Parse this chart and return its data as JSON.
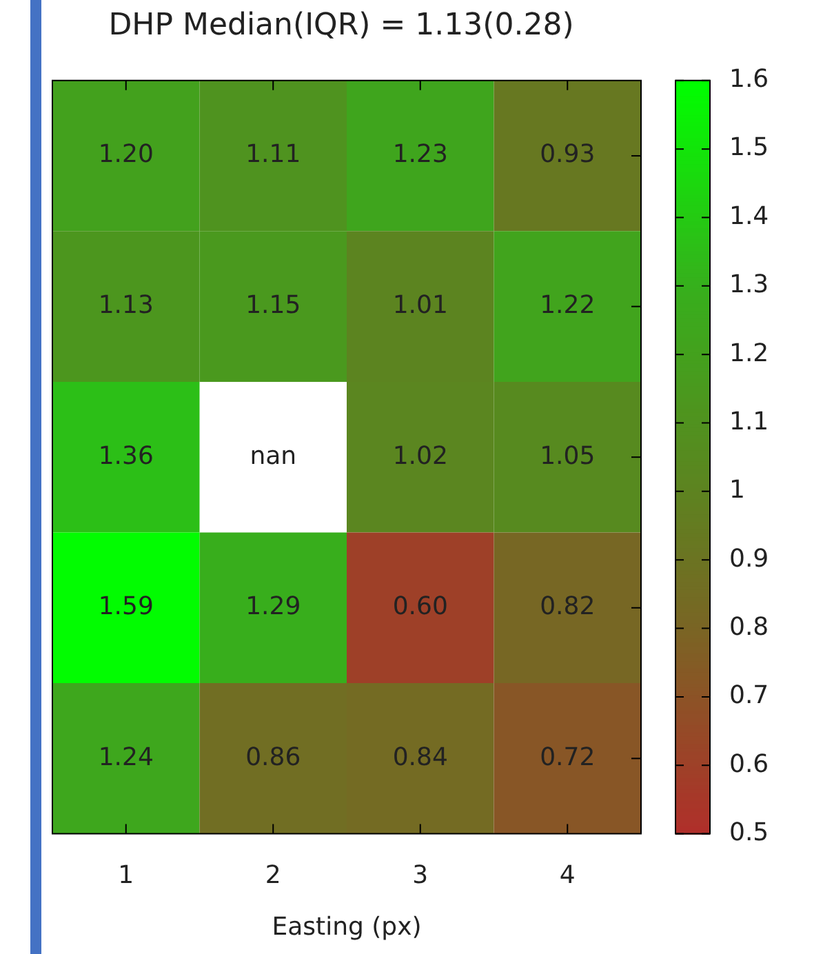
{
  "chart_data": {
    "type": "heatmap",
    "title": "DHP Median(IQR) = 1.13(0.28)",
    "xlabel": "Easting (px)",
    "categories": [
      "1",
      "2",
      "3",
      "4"
    ],
    "y_categories": [
      null,
      null,
      null,
      null,
      null
    ],
    "cells": [
      [
        1.2,
        1.11,
        1.23,
        0.93
      ],
      [
        1.13,
        1.15,
        1.01,
        1.22
      ],
      [
        1.36,
        null,
        1.02,
        1.05
      ],
      [
        1.59,
        1.29,
        0.6,
        0.82
      ],
      [
        1.24,
        0.86,
        0.84,
        0.72
      ]
    ],
    "cell_labels": [
      [
        "1.20",
        "1.11",
        "1.23",
        "0.93"
      ],
      [
        "1.13",
        "1.15",
        "1.01",
        "1.22"
      ],
      [
        "1.36",
        "nan",
        "1.02",
        "1.05"
      ],
      [
        "1.59",
        "1.29",
        "0.60",
        "0.82"
      ],
      [
        "1.24",
        "0.86",
        "0.84",
        "0.72"
      ]
    ],
    "clim": [
      0.5,
      1.6
    ],
    "cticks": [
      0.5,
      0.6,
      0.7,
      0.8,
      0.9,
      1,
      1.1,
      1.2,
      1.3,
      1.4,
      1.5,
      1.6
    ],
    "tick_labels": "x"
  }
}
